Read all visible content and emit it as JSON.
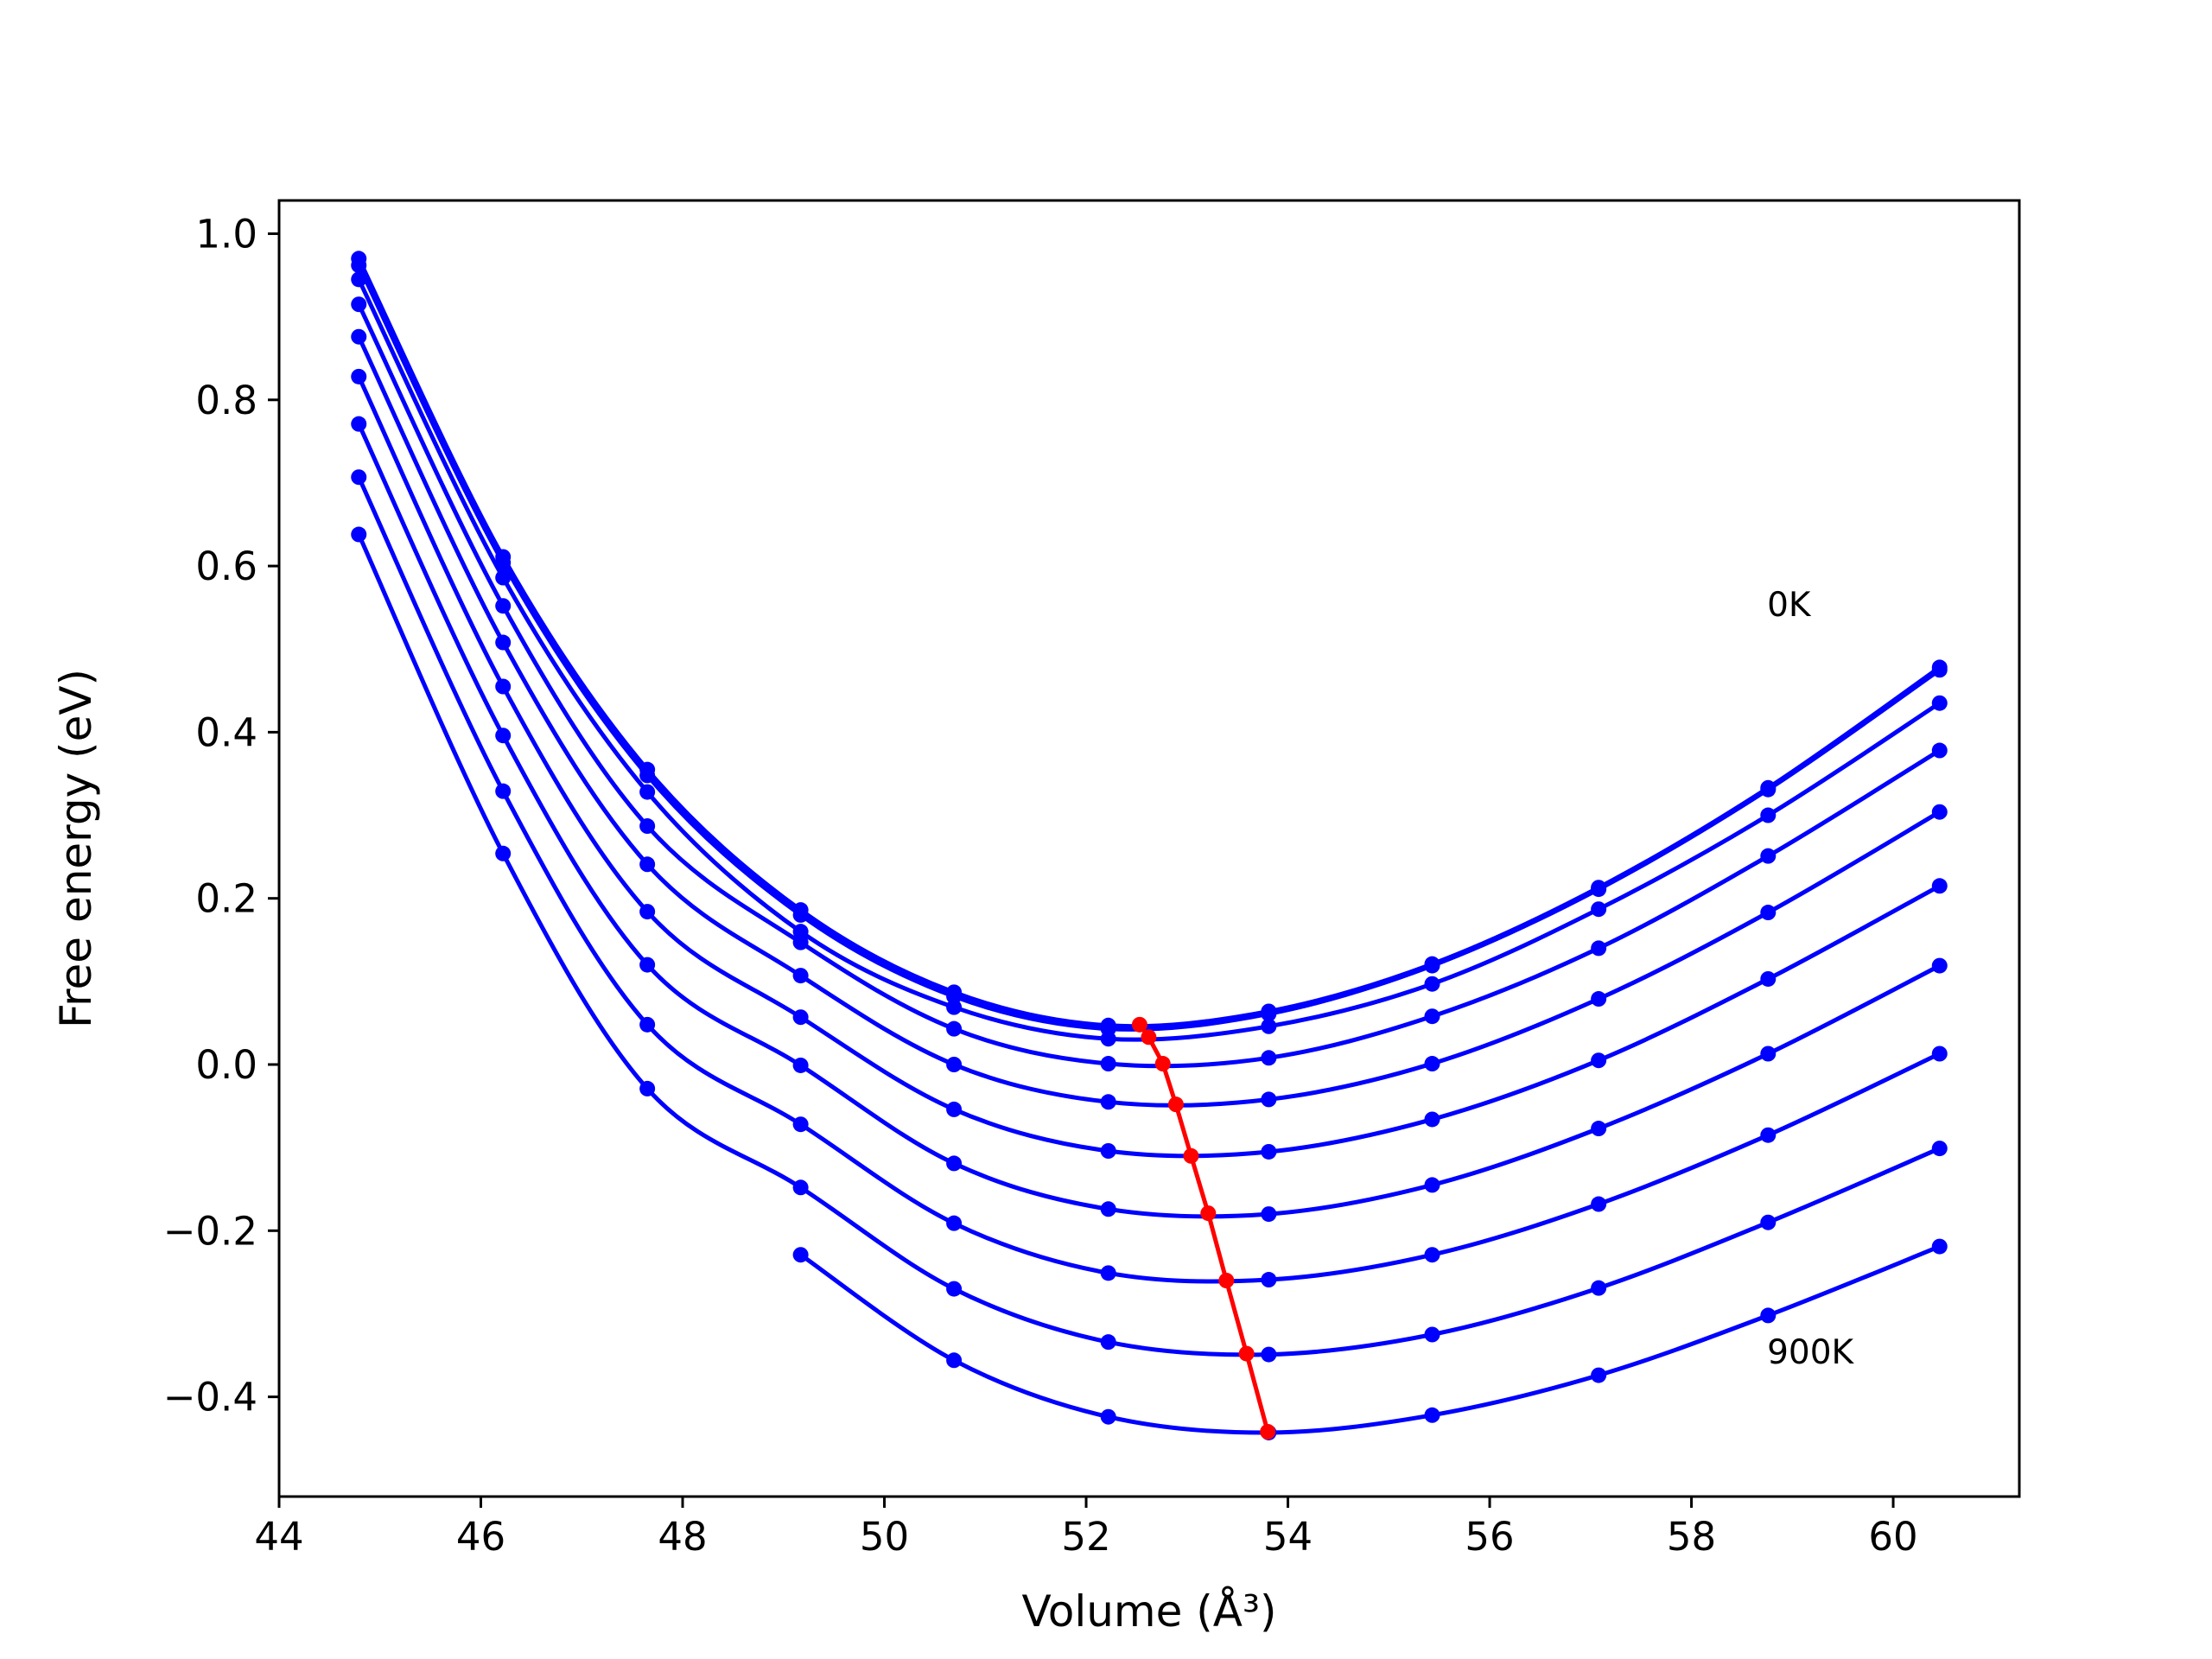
{
  "chart_data": {
    "type": "line",
    "xlabel": "Volume (Å³)",
    "ylabel": "Free energy (eV)",
    "xlim": [
      44,
      61.25
    ],
    "ylim": [
      -0.52,
      1.04
    ],
    "xticks": [
      "44",
      "46",
      "48",
      "50",
      "52",
      "54",
      "56",
      "58",
      "60"
    ],
    "yticks": [
      "−0.4",
      "−0.2",
      "0.0",
      "0.2",
      "0.4",
      "0.6",
      "0.8",
      "1.0"
    ],
    "grid": false,
    "annotations": [
      {
        "text": "0K",
        "x": 58.75,
        "y": 0.54
      },
      {
        "text": "900K",
        "x": 58.75,
        "y": -0.36
      }
    ],
    "series_color": "#0000ff",
    "minimum_color": "#ff0000",
    "x": [
      44.79,
      46.22,
      47.65,
      49.17,
      50.69,
      52.22,
      53.81,
      55.43,
      57.08,
      58.76,
      60.46
    ],
    "series": [
      {
        "values": [
          0.97,
          0.611,
          0.355,
          0.186,
          0.087,
          0.047,
          0.064,
          0.121,
          0.213,
          0.333,
          0.478
        ]
      },
      {
        "values": [
          0.962,
          0.604,
          0.348,
          0.18,
          0.082,
          0.043,
          0.061,
          0.119,
          0.211,
          0.331,
          0.475
        ]
      },
      {
        "values": [
          0.945,
          0.586,
          0.328,
          0.16,
          0.069,
          0.031,
          0.046,
          0.097,
          0.187,
          0.3,
          0.435
        ]
      },
      {
        "values": [
          0.915,
          0.552,
          0.287,
          0.147,
          0.043,
          0.001,
          0.008,
          0.058,
          0.14,
          0.251,
          0.378
        ]
      },
      {
        "values": [
          0.876,
          0.508,
          0.241,
          0.107,
          0.0,
          -0.045,
          -0.042,
          0.001,
          0.079,
          0.183,
          0.304
        ]
      },
      {
        "values": [
          0.828,
          0.455,
          0.184,
          0.057,
          -0.054,
          -0.104,
          -0.105,
          -0.066,
          0.005,
          0.103,
          0.215
        ]
      },
      {
        "values": [
          0.771,
          0.396,
          0.12,
          -0.001,
          -0.119,
          -0.174,
          -0.18,
          -0.145,
          -0.077,
          0.013,
          0.119
        ]
      },
      {
        "values": [
          0.707,
          0.329,
          0.048,
          -0.072,
          -0.191,
          -0.251,
          -0.259,
          -0.229,
          -0.168,
          -0.085,
          0.013
        ]
      },
      {
        "values": [
          0.638,
          0.254,
          -0.029,
          -0.148,
          -0.27,
          -0.334,
          -0.349,
          -0.325,
          -0.269,
          -0.19,
          -0.101
        ]
      },
      {
        "values": [
          null,
          null,
          null,
          -0.229,
          -0.356,
          -0.424,
          -0.443,
          -0.422,
          -0.374,
          -0.302,
          -0.219
        ]
      }
    ],
    "minima": {
      "x": [
        52.53,
        52.62,
        52.76,
        52.89,
        53.04,
        53.21,
        53.39,
        53.59,
        53.8
      ],
      "y": [
        0.048,
        0.033,
        0.001,
        -0.048,
        -0.11,
        -0.179,
        -0.26,
        -0.348,
        -0.442
      ]
    }
  }
}
